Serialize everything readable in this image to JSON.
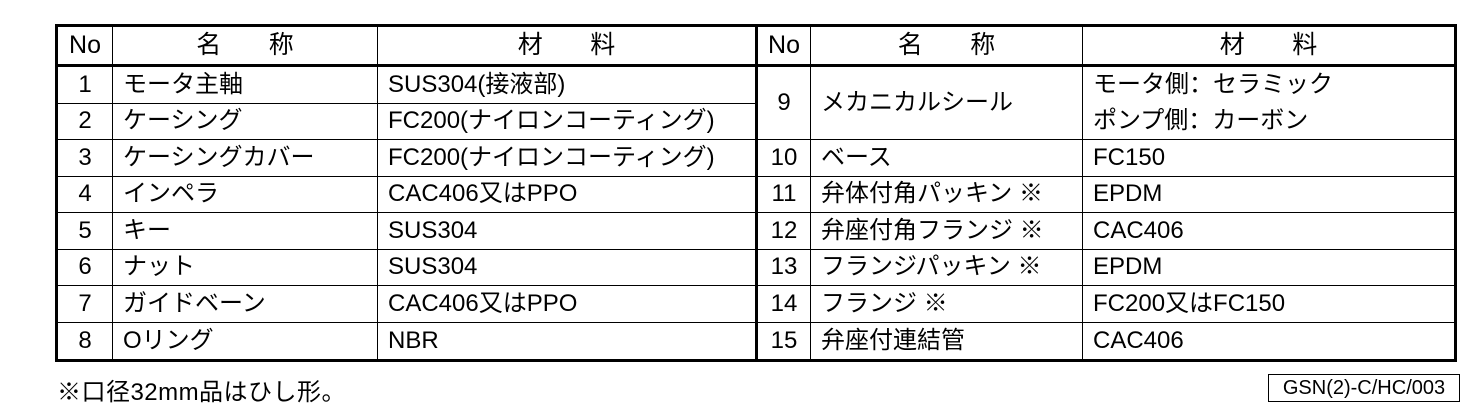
{
  "left_table": {
    "headers": {
      "no": "No",
      "name": "名　称",
      "material": "材　料"
    },
    "rows": [
      {
        "no": "1",
        "name": "モータ主軸",
        "material": "SUS304(接液部)"
      },
      {
        "no": "2",
        "name": "ケーシング",
        "material": "FC200(ナイロンコーティング)"
      },
      {
        "no": "3",
        "name": "ケーシングカバー",
        "material": "FC200(ナイロンコーティング)"
      },
      {
        "no": "4",
        "name": "インペラ",
        "material": "CAC406又はPPO"
      },
      {
        "no": "5",
        "name": "キー",
        "material": "SUS304"
      },
      {
        "no": "6",
        "name": "ナット",
        "material": "SUS304"
      },
      {
        "no": "7",
        "name": "ガイドベーン",
        "material": "CAC406又はPPO"
      },
      {
        "no": "8",
        "name": "Oリング",
        "material": "NBR"
      }
    ]
  },
  "right_table": {
    "headers": {
      "no": "No",
      "name": "名　称",
      "material": "材　料"
    },
    "row9": {
      "no": "9",
      "name": "メカニカルシール",
      "material_lines": {
        "0": "モータ側：セラミック",
        "1": "ポンプ側：カーボン"
      }
    },
    "rows": [
      {
        "no": "10",
        "name": "ベース",
        "material": "FC150"
      },
      {
        "no": "11",
        "name": "弁体付角パッキン ※",
        "material": "EPDM"
      },
      {
        "no": "12",
        "name": "弁座付角フランジ ※",
        "material": "CAC406"
      },
      {
        "no": "13",
        "name": "フランジパッキン ※",
        "material": "EPDM"
      },
      {
        "no": "14",
        "name": "フランジ ※",
        "material": "FC200又はFC150"
      },
      {
        "no": "15",
        "name": "弁座付連結管",
        "material": "CAC406"
      }
    ]
  },
  "footnote": "※口径32mm品はひし形。",
  "doc_number": "GSN(2)-C/HC/003"
}
